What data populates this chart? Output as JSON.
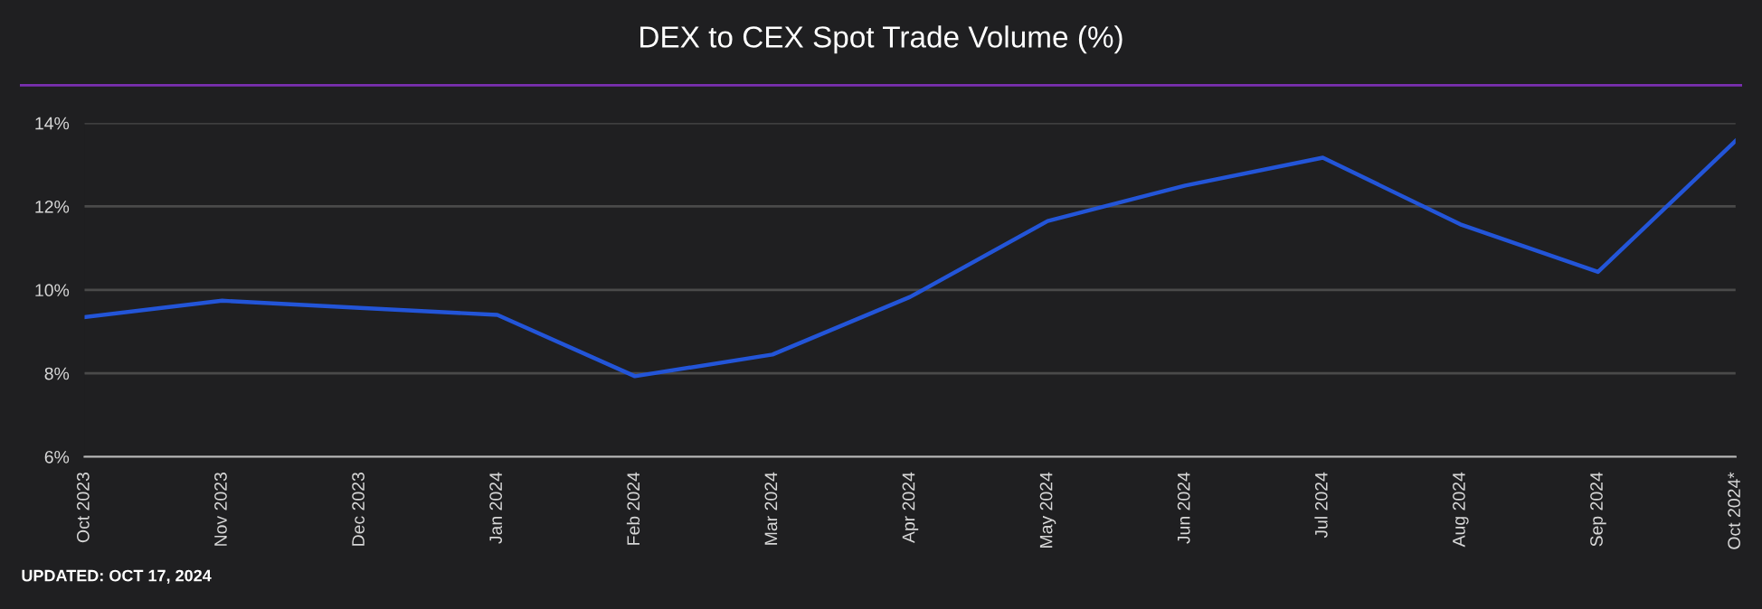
{
  "chart_data": {
    "type": "line",
    "title": "DEX to CEX Spot Trade Volume (%)",
    "categories": [
      "Oct 2023",
      "Nov 2023",
      "Dec 2023",
      "Jan 2024",
      "Feb 2024",
      "Mar 2024",
      "Apr 2024",
      "May 2024",
      "Jun 2024",
      "Jul 2024",
      "Aug 2024",
      "Sep 2024",
      "Oct 2024*"
    ],
    "series": [
      {
        "color": "#2355d8",
        "values": [
          9.35,
          9.74,
          9.57,
          9.4,
          7.93,
          8.45,
          9.83,
          11.65,
          12.5,
          13.17,
          11.57,
          10.43,
          13.57
        ]
      }
    ],
    "ylim": [
      6,
      14
    ],
    "yticks": [
      {
        "value": 6,
        "label": "6%"
      },
      {
        "value": 8,
        "label": "8%"
      },
      {
        "value": 10,
        "label": "10%"
      },
      {
        "value": 12,
        "label": "12%"
      },
      {
        "value": 14,
        "label": "14%"
      }
    ],
    "grid": "y",
    "marker": "none",
    "line_style": "solid",
    "annotations": [
      "UPDATED: OCT 17, 2024"
    ]
  }
}
